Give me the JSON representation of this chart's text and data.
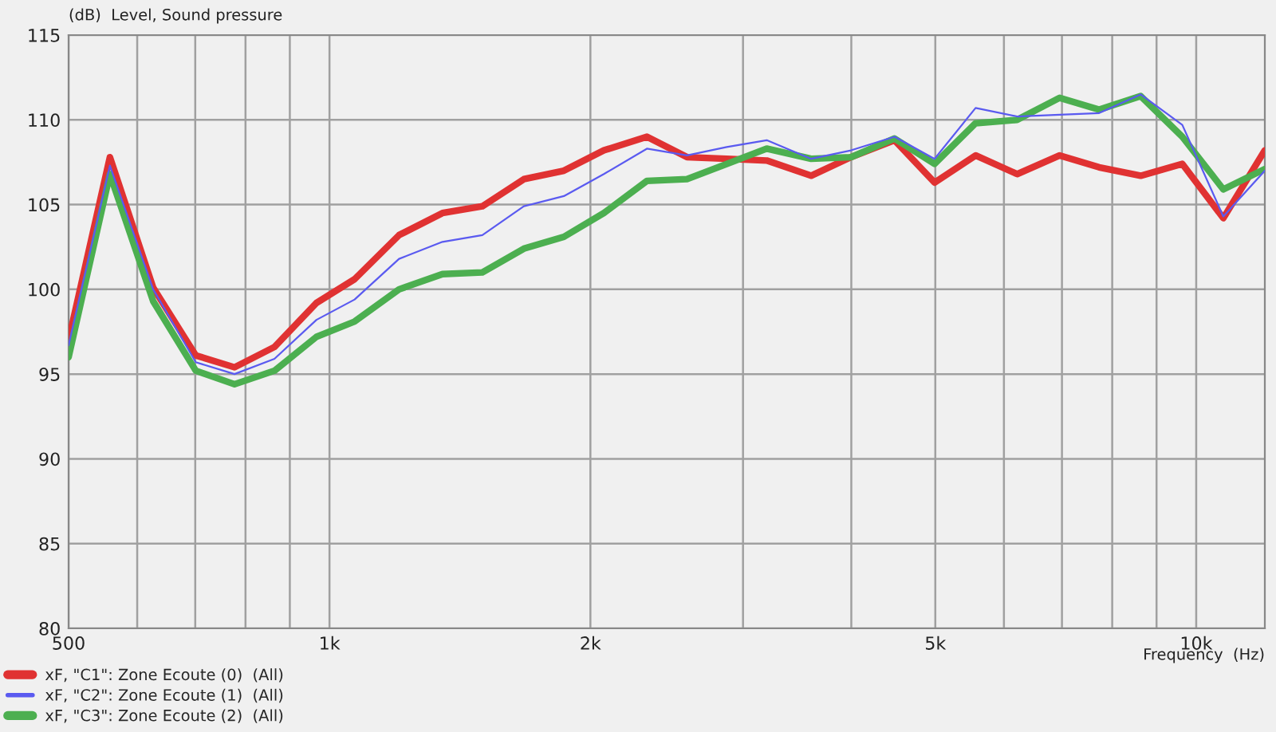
{
  "chart_data": {
    "type": "line",
    "ylabel": "(dB)  Level, Sound pressure",
    "xlabel": "Frequency  (Hz)",
    "x": [
      500,
      558,
      626,
      701,
      777,
      864,
      966,
      1069,
      1203,
      1350,
      1501,
      1676,
      1864,
      2073,
      2324,
      2585,
      2873,
      3195,
      3595,
      3997,
      4487,
      4990,
      5565,
      6214,
      6958,
      7727,
      8628,
      9637,
      10747,
      12000
    ],
    "series": [
      {
        "name": "xF, \"C1\": Zone Ecoute (0)  (All)",
        "color": "#e03232",
        "values": [
          97.0,
          107.8,
          100.1,
          96.1,
          95.4,
          96.6,
          99.2,
          100.6,
          103.2,
          104.5,
          104.9,
          106.5,
          107.0,
          108.2,
          109.0,
          107.8,
          107.7,
          107.6,
          106.7,
          107.8,
          108.8,
          106.3,
          107.9,
          106.8,
          107.9,
          107.2,
          106.7,
          107.4,
          104.2,
          108.2
        ]
      },
      {
        "name": "xF, \"C2\": Zone Ecoute (1)  (All)",
        "color": "#5a5af0",
        "values": [
          96.7,
          107.3,
          100.0,
          95.7,
          95.0,
          95.9,
          98.2,
          99.4,
          101.8,
          102.8,
          103.2,
          104.9,
          105.5,
          106.8,
          108.3,
          107.9,
          108.4,
          108.8,
          107.7,
          108.2,
          109.0,
          107.7,
          110.7,
          110.2,
          110.3,
          110.4,
          111.5,
          109.7,
          104.3,
          107.0
        ]
      },
      {
        "name": "xF, \"C3\": Zone Ecoute (2)  (All)",
        "color": "#4caf50",
        "values": [
          96.0,
          106.8,
          99.3,
          95.2,
          94.4,
          95.2,
          97.2,
          98.1,
          100.0,
          100.9,
          101.0,
          102.4,
          103.1,
          104.5,
          106.4,
          106.5,
          107.4,
          108.3,
          107.7,
          107.8,
          108.9,
          107.4,
          109.8,
          110.0,
          111.3,
          110.6,
          111.4,
          109.0,
          105.9,
          107.1
        ]
      }
    ],
    "log": "x",
    "xlim": [
      500,
      12000
    ],
    "xticks": [
      500,
      {
        "value": 600,
        "label": null
      },
      {
        "value": 700,
        "label": null
      },
      {
        "value": 800,
        "label": null
      },
      {
        "value": 900,
        "label": null
      },
      {
        "value": 1000,
        "label": "1k"
      },
      {
        "value": 2000,
        "label": "2k"
      },
      {
        "value": 3000,
        "label": null
      },
      {
        "value": 4000,
        "label": null
      },
      {
        "value": 5000,
        "label": "5k"
      },
      {
        "value": 6000,
        "label": null
      },
      {
        "value": 7000,
        "label": null
      },
      {
        "value": 8000,
        "label": null
      },
      {
        "value": 9000,
        "label": null
      },
      {
        "value": 10000,
        "label": "10k"
      }
    ],
    "ylim": [
      80,
      115
    ],
    "yticks": [
      80,
      85,
      90,
      95,
      100,
      105,
      110,
      115
    ],
    "grid": true,
    "legend": "bottom left",
    "line_style": "solid",
    "marker": "none"
  }
}
